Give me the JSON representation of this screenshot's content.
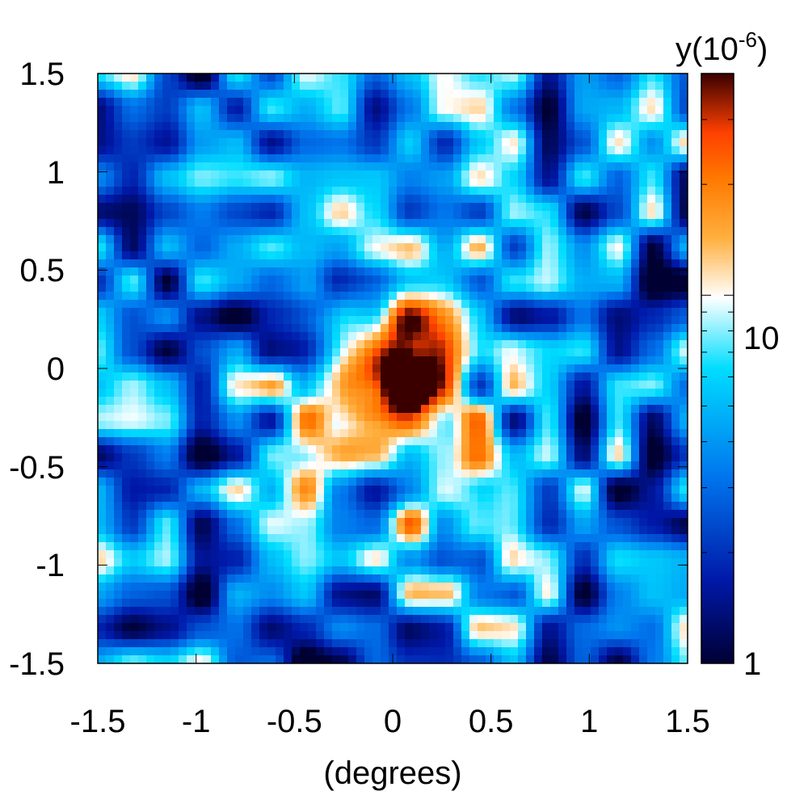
{
  "chart_data": {
    "type": "heatmap",
    "title": "",
    "xlabel": "(degrees)",
    "ylabel": "",
    "xlim": [
      -1.5,
      1.5
    ],
    "ylim": [
      -1.5,
      1.5
    ],
    "x_ticks": [
      "-1.5",
      "-1",
      "-0.5",
      "0",
      "0.5",
      "1",
      "1.5"
    ],
    "y_ticks": [
      "1.5",
      "1",
      "0.5",
      "0",
      "-0.5",
      "-1",
      "-1.5"
    ],
    "colorbar": {
      "label": "y(10",
      "label_exponent": "-6",
      "label_close": ")",
      "scale": "log",
      "range": [
        1,
        40
      ],
      "tick_labels": [
        "10",
        "1"
      ],
      "colors": [
        "#000033",
        "#0033cc",
        "#00ccff",
        "#ffffff",
        "#ff9900",
        "#ff4400",
        "#330000"
      ]
    },
    "peak": {
      "x": 0.0,
      "y": 0.0,
      "value": 40
    },
    "extended_emission_direction": "toward lower-right (+x, -y)"
  }
}
